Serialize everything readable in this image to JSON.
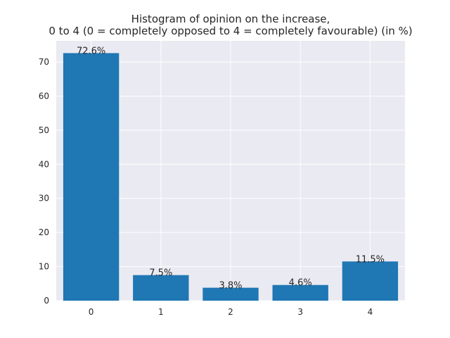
{
  "chart_data": {
    "type": "bar",
    "title_lines": [
      "Histogram of opinion on the increase,",
      "0 to 4 (0 = completely opposed to 4 = completely favourable) (in %)"
    ],
    "categories": [
      "0",
      "1",
      "2",
      "3",
      "4"
    ],
    "values": [
      72.6,
      7.5,
      3.8,
      4.6,
      11.5
    ],
    "data_labels": [
      "72.6%",
      "7.5%",
      "3.8%",
      "4.6%",
      "11.5%"
    ],
    "xlabel": "",
    "ylabel": "",
    "ylim": [
      0,
      76.2
    ],
    "yticks": [
      0,
      10,
      20,
      30,
      40,
      50,
      60,
      70
    ],
    "grid": true,
    "colors": {
      "bar": "#1f77b4",
      "plot_background": "#eaeaf2",
      "grid": "#ffffff"
    }
  }
}
